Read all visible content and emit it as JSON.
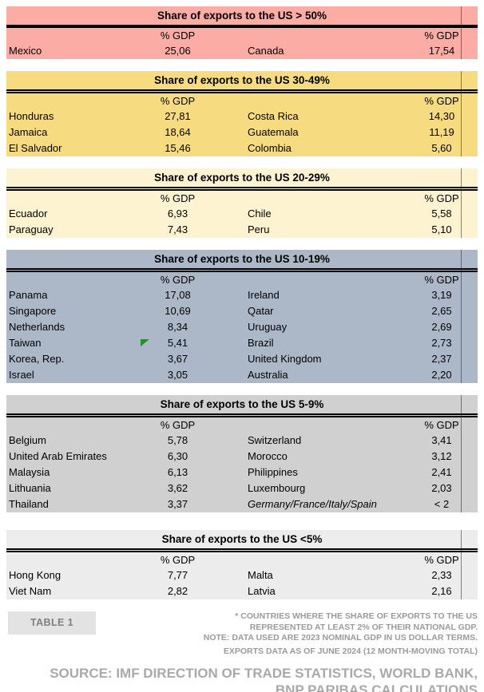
{
  "sections": [
    {
      "title": "Share of exports to the US > 50%",
      "bg": "#FAACA5",
      "gdp_header_left": "% GDP",
      "gdp_header_right": "% GDP",
      "rows": [
        {
          "country_left": "Mexico",
          "value_left": "25,06",
          "country_right": "Canada",
          "value_right": "17,54"
        }
      ]
    },
    {
      "title": "Share of exports to the US 30-49%",
      "bg": "#F7DB81",
      "gdp_header_left": "% GDP",
      "gdp_header_right": "% GDP",
      "rows": [
        {
          "country_left": "Honduras",
          "value_left": "27,81",
          "country_right": "Costa Rica",
          "value_right": "14,30"
        },
        {
          "country_left": "Jamaica",
          "value_left": "18,64",
          "country_right": "Guatemala",
          "value_right": "11,19"
        },
        {
          "country_left": "El Salvador",
          "value_left": "15,46",
          "country_right": "Colombia",
          "value_right": "5,60"
        }
      ]
    },
    {
      "title": "Share of exports to the US 20-29%",
      "bg": "#FDF3D0",
      "gdp_header_left": "% GDP",
      "gdp_header_right": "% GDP",
      "rows": [
        {
          "country_left": "Ecuador",
          "value_left": "6,93",
          "country_right": "Chile",
          "value_right": "5,58"
        },
        {
          "country_left": "Paraguay",
          "value_left": "7,43",
          "country_right": "Peru",
          "value_right": "5,10"
        }
      ]
    },
    {
      "title": "Share of exports to the US 10-19%",
      "bg": "#ACB8C8",
      "gdp_header_left": "% GDP",
      "gdp_header_right": "% GDP",
      "rows": [
        {
          "country_left": "Panama",
          "value_left": "17,08",
          "country_right": "Ireland",
          "value_right": "3,19"
        },
        {
          "country_left": "Singapore",
          "value_left": "10,69",
          "country_right": "Qatar",
          "value_right": "2,65"
        },
        {
          "country_left": "Netherlands",
          "value_left": "8,34",
          "country_right": "Uruguay",
          "value_right": "2,69"
        },
        {
          "country_left": "Taiwan",
          "value_left": "5,41",
          "country_right": "Brazil",
          "value_right": "2,73"
        },
        {
          "country_left": "Korea, Rep.",
          "value_left": "3,67",
          "country_right": "United Kingdom",
          "value_right": "2,37"
        },
        {
          "country_left": "Israel",
          "value_left": "3,05",
          "country_right": "Australia",
          "value_right": "2,20"
        }
      ]
    },
    {
      "title": "Share of exports to the US 5-9%",
      "bg": "#D0D0D0",
      "gdp_header_left": "% GDP",
      "gdp_header_right": "% GDP",
      "rows": [
        {
          "country_left": "Belgium",
          "value_left": "5,78",
          "country_right": "Switzerland",
          "value_right": "3,41"
        },
        {
          "country_left": "United Arab Emirates",
          "value_left": "6,30",
          "country_right": "Morocco",
          "value_right": "3,12"
        },
        {
          "country_left": "Malaysia",
          "value_left": "6,13",
          "country_right": "Philippines",
          "value_right": "2,41"
        },
        {
          "country_left": "Lithuania",
          "value_left": "3,62",
          "country_right": "Luxembourg",
          "value_right": "2,03"
        },
        {
          "country_left": "Thailand",
          "value_left": "3,37",
          "country_right": "Germany/France/Italy/Spain",
          "value_right": "< 2"
        }
      ]
    },
    {
      "title": "Share of exports to the US <5%",
      "bg": "#ECECEC",
      "gdp_header_left": "% GDP",
      "gdp_header_right": "% GDP",
      "rows": [
        {
          "country_left": "Hong Kong",
          "value_left": "7,77",
          "country_right": "Malta",
          "value_right": "2,33"
        },
        {
          "country_left": "Viet Nam",
          "value_left": "2,82",
          "country_right": "Latvia",
          "value_right": "2,16"
        }
      ]
    }
  ],
  "marker_color": "#1F9522",
  "footer": {
    "table_label": "TABLE 1",
    "footnote_line1": "* COUNTRIES WHERE THE SHARE OF EXPORTS TO THE US",
    "footnote_line2": "REPRESENTED AT LEAST 2% OF THEIR NATIONAL GDP.",
    "footnote_line3": "NOTE: DATA USED ARE 2023 NOMINAL GDP IN US DOLLAR TERMS.",
    "footnote_line4": "EXPORTS DATA AS OF JUNE 2024 (12 MONTH-MOVING TOTAL)",
    "source_line1": "SOURCE: IMF DIRECTION OF TRADE STATISTICS, WORLD BANK,",
    "source_line2": "BNP PARIBAS CALCULATIONS"
  },
  "chart_data": {
    "type": "table",
    "title": "Share of exports to the US (% GDP)",
    "unit": "% GDP",
    "groups": [
      {
        "bucket": "Share of exports to the US > 50%",
        "entries": [
          [
            "Mexico",
            25.06
          ],
          [
            "Canada",
            17.54
          ]
        ]
      },
      {
        "bucket": "Share of exports to the US 30-49%",
        "entries": [
          [
            "Honduras",
            27.81
          ],
          [
            "Costa Rica",
            14.3
          ],
          [
            "Jamaica",
            18.64
          ],
          [
            "Guatemala",
            11.19
          ],
          [
            "El Salvador",
            15.46
          ],
          [
            "Colombia",
            5.6
          ]
        ]
      },
      {
        "bucket": "Share of exports to the US 20-29%",
        "entries": [
          [
            "Ecuador",
            6.93
          ],
          [
            "Chile",
            5.58
          ],
          [
            "Paraguay",
            7.43
          ],
          [
            "Peru",
            5.1
          ]
        ]
      },
      {
        "bucket": "Share of exports to the US 10-19%",
        "entries": [
          [
            "Panama",
            17.08
          ],
          [
            "Ireland",
            3.19
          ],
          [
            "Singapore",
            10.69
          ],
          [
            "Qatar",
            2.65
          ],
          [
            "Netherlands",
            8.34
          ],
          [
            "Uruguay",
            2.69
          ],
          [
            "Taiwan",
            5.41
          ],
          [
            "Brazil",
            2.73
          ],
          [
            "Korea, Rep.",
            3.67
          ],
          [
            "United Kingdom",
            2.37
          ],
          [
            "Israel",
            3.05
          ],
          [
            "Australia",
            2.2
          ]
        ]
      },
      {
        "bucket": "Share of exports to the US 5-9%",
        "entries": [
          [
            "Belgium",
            5.78
          ],
          [
            "Switzerland",
            3.41
          ],
          [
            "United Arab Emirates",
            6.3
          ],
          [
            "Morocco",
            3.12
          ],
          [
            "Malaysia",
            6.13
          ],
          [
            "Philippines",
            2.41
          ],
          [
            "Lithuania",
            3.62
          ],
          [
            "Luxembourg",
            2.03
          ],
          [
            "Thailand",
            3.37
          ],
          [
            "Germany/France/Italy/Spain",
            "< 2"
          ]
        ]
      },
      {
        "bucket": "Share of exports to the US <5%",
        "entries": [
          [
            "Hong Kong",
            7.77
          ],
          [
            "Malta",
            2.33
          ],
          [
            "Viet Nam",
            2.82
          ],
          [
            "Latvia",
            2.16
          ]
        ]
      }
    ]
  }
}
